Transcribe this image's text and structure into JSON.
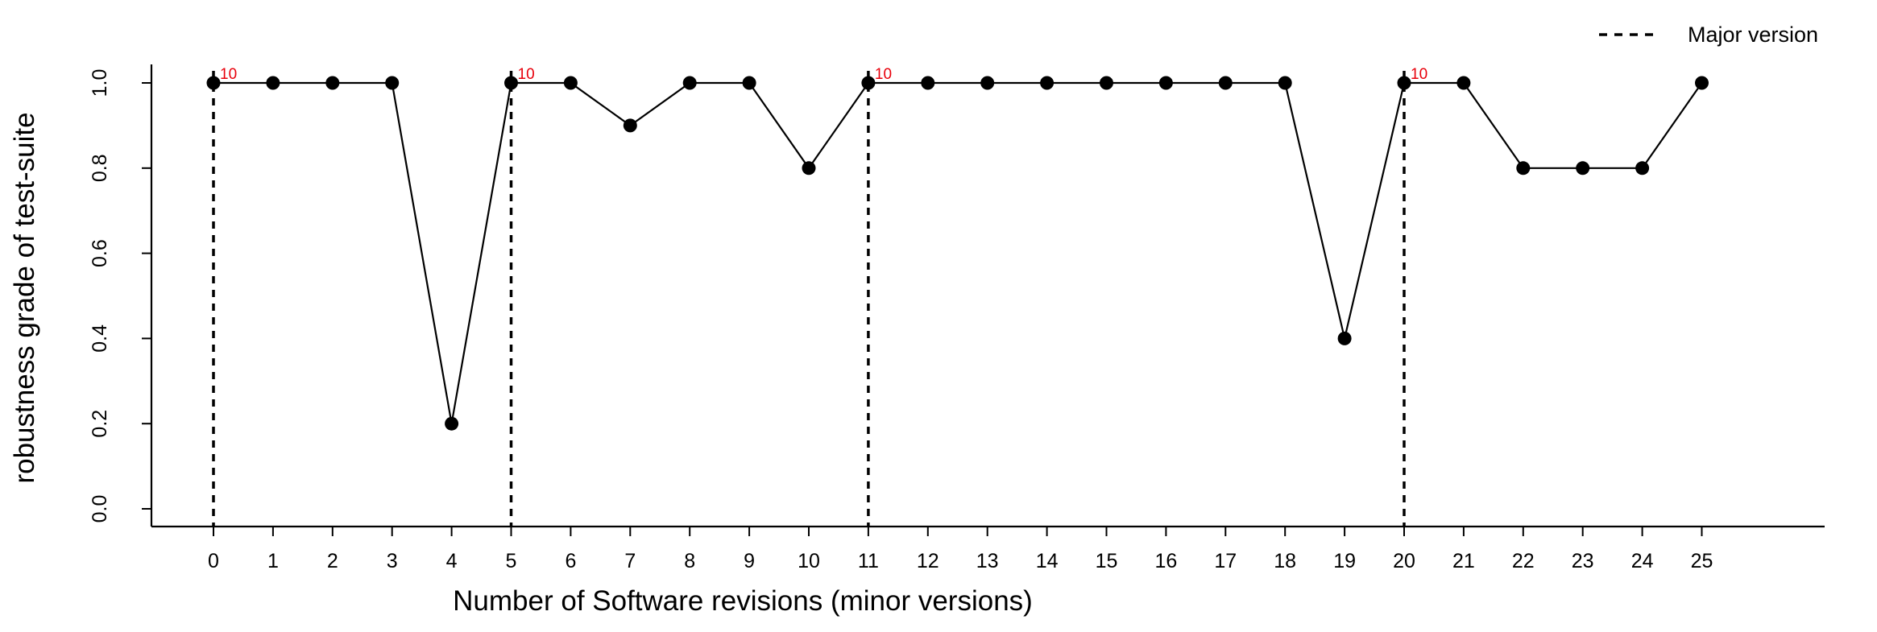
{
  "chart_data": {
    "type": "line",
    "title": "",
    "xlabel": "Number of Software revisions (minor versions)",
    "ylabel": "robustness grade of test-suite",
    "xlim": [
      -1,
      27
    ],
    "ylim": [
      0.0,
      1.0
    ],
    "x_ticks": [
      "0",
      "1",
      "2",
      "3",
      "4",
      "5",
      "6",
      "7",
      "8",
      "9",
      "10",
      "11",
      "12",
      "13",
      "14",
      "15",
      "16",
      "17",
      "18",
      "19",
      "20",
      "21",
      "22",
      "23",
      "24",
      "25"
    ],
    "y_ticks": [
      "0.0",
      "0.2",
      "0.4",
      "0.6",
      "0.8",
      "1.0"
    ],
    "series": [
      {
        "x": [
          0,
          1,
          2,
          3,
          4,
          5,
          6,
          7,
          8,
          9,
          10,
          11,
          12,
          13,
          14,
          15,
          16,
          17,
          18,
          19,
          20,
          21,
          22,
          23,
          24,
          25
        ],
        "values": [
          1.0,
          1.0,
          1.0,
          1.0,
          0.2,
          1.0,
          1.0,
          0.9,
          1.0,
          1.0,
          0.8,
          1.0,
          1.0,
          1.0,
          1.0,
          1.0,
          1.0,
          1.0,
          1.0,
          0.4,
          1.0,
          1.0,
          0.8,
          0.8,
          0.8,
          1.0
        ]
      }
    ],
    "major_versions": [
      0,
      5,
      11,
      20
    ],
    "major_version_labels": [
      "10",
      "10",
      "10",
      "10"
    ],
    "legend": {
      "label": "Major version",
      "placement": "top-right"
    },
    "grid": false,
    "colors": {
      "line": "#000000",
      "marker": "#000000",
      "annotation": "#e8000b"
    }
  }
}
